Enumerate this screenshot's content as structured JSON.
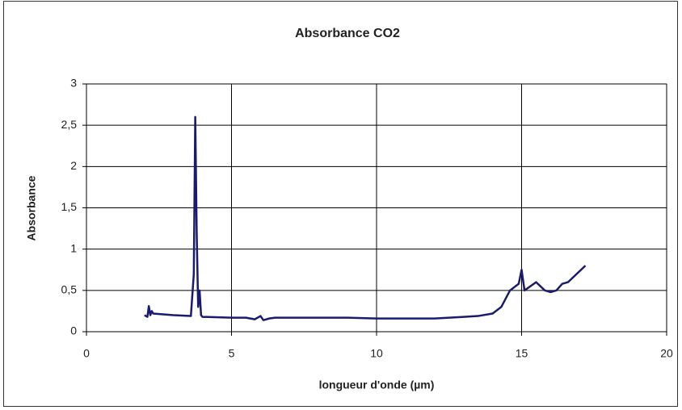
{
  "chart_data": {
    "type": "line",
    "title": "Absorbance CO2",
    "x_label": "longueur d'onde (µm)",
    "y_label": "Absorbance",
    "x": [
      2.0,
      2.1,
      2.15,
      2.2,
      2.25,
      2.3,
      3.0,
      3.6,
      3.7,
      3.75,
      3.8,
      3.85,
      3.9,
      3.95,
      4.0,
      5.0,
      5.5,
      5.8,
      6.0,
      6.1,
      6.3,
      6.5,
      7.0,
      8.0,
      9.0,
      10.0,
      11.0,
      12.0,
      13.0,
      13.5,
      14.0,
      14.3,
      14.6,
      14.9,
      15.0,
      15.1,
      15.3,
      15.5,
      15.8,
      16.0,
      16.2,
      16.4,
      16.6,
      16.9,
      17.2
    ],
    "values": [
      0.2,
      0.18,
      0.31,
      0.2,
      0.25,
      0.22,
      0.2,
      0.19,
      0.7,
      2.6,
      1.2,
      0.3,
      0.5,
      0.2,
      0.18,
      0.17,
      0.17,
      0.15,
      0.19,
      0.14,
      0.16,
      0.17,
      0.17,
      0.17,
      0.17,
      0.16,
      0.16,
      0.16,
      0.18,
      0.19,
      0.22,
      0.3,
      0.5,
      0.58,
      0.75,
      0.5,
      0.55,
      0.6,
      0.5,
      0.48,
      0.5,
      0.58,
      0.6,
      0.7,
      0.8
    ],
    "color": "#1a1a6e",
    "xlim": [
      0,
      20
    ],
    "xticks": [
      0,
      5,
      10,
      15,
      20
    ],
    "ylim": [
      0,
      3
    ],
    "yticks": [
      0,
      {
        "value": 0.5,
        "label": "0,5"
      },
      1,
      {
        "value": 1.5,
        "label": "1,5"
      },
      2,
      {
        "value": 2.5,
        "label": "2,5"
      },
      3
    ],
    "grid": true
  }
}
